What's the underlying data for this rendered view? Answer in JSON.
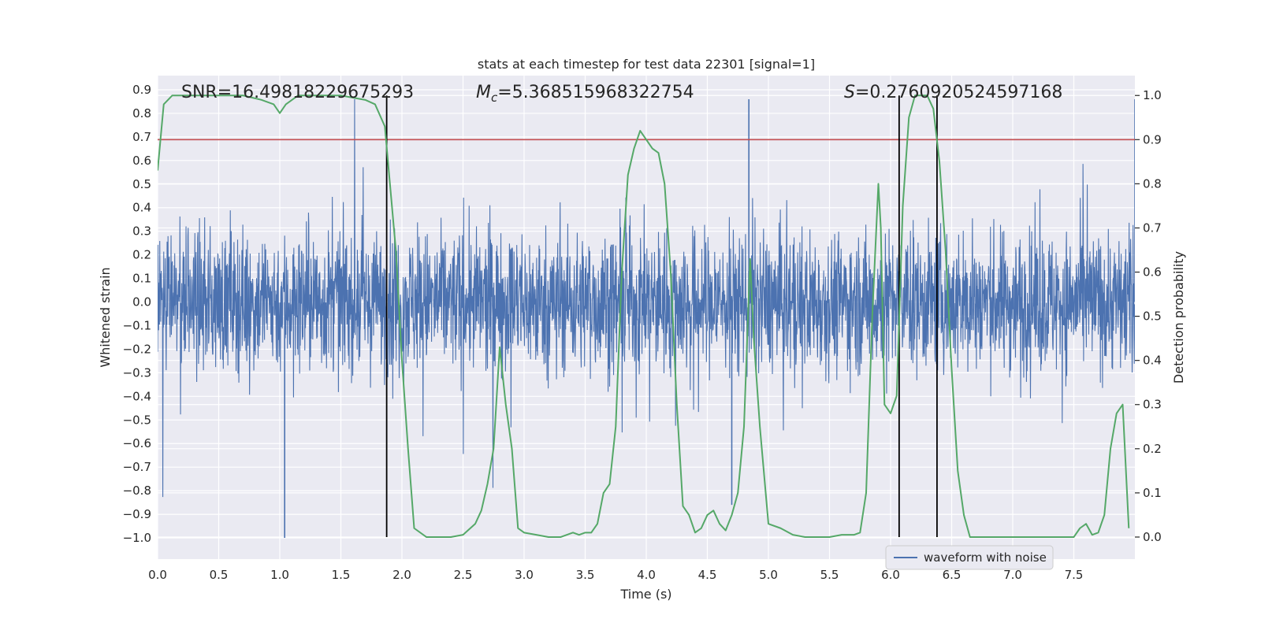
{
  "chart_data": {
    "type": "line",
    "title": "stats at each timestep for test data 22301 [signal=1]",
    "xlabel": "Time (s)",
    "ylabel_left": "Whitened strain",
    "ylabel_right": "Detection probability",
    "xlim": [
      0.0,
      8.0
    ],
    "ylim_left": [
      -1.09,
      0.96
    ],
    "ylim_right": [
      -0.05,
      1.045
    ],
    "x_ticks": [
      0.0,
      0.5,
      1.0,
      1.5,
      2.0,
      2.5,
      3.0,
      3.5,
      4.0,
      4.5,
      5.0,
      5.5,
      6.0,
      6.5,
      7.0,
      7.5
    ],
    "x_tick_labels": [
      "0.0",
      "0.5",
      "1.0",
      "1.5",
      "2.0",
      "2.5",
      "3.0",
      "3.5",
      "4.0",
      "4.5",
      "5.0",
      "5.5",
      "6.0",
      "6.5",
      "7.0",
      "7.5"
    ],
    "y_left_ticks": [
      0.9,
      0.8,
      0.7,
      0.6,
      0.5,
      0.4,
      0.3,
      0.2,
      0.1,
      0.0,
      -0.1,
      -0.2,
      -0.3,
      -0.4,
      -0.5,
      -0.6,
      -0.7,
      -0.8,
      -0.9,
      -1.0
    ],
    "y_left_tick_labels": [
      "0.9",
      "0.8",
      "0.7",
      "0.6",
      "0.5",
      "0.4",
      "0.3",
      "0.2",
      "0.1",
      "0.0",
      "−0.1",
      "−0.2",
      "−0.3",
      "−0.4",
      "−0.5",
      "−0.6",
      "−0.7",
      "−0.8",
      "−0.9",
      "−1.0"
    ],
    "y_right_ticks": [
      1.0,
      0.9,
      0.8,
      0.7,
      0.6,
      0.5,
      0.4,
      0.3,
      0.2,
      0.1,
      0.0
    ],
    "y_right_tick_labels": [
      "1.0",
      "0.9",
      "0.8",
      "0.7",
      "0.6",
      "0.5",
      "0.4",
      "0.3",
      "0.2",
      "0.1",
      "0.0"
    ],
    "annotations": {
      "snr": "SNR=16.49818229675293",
      "mc_symbol": "M",
      "mc_sub": "c",
      "mc_value": "=5.368515968322754",
      "s_symbol": "S",
      "s_value": "=0.2760920524597168"
    },
    "threshold": {
      "axis": "right",
      "value": 0.9,
      "color": "#c44e52"
    },
    "vertical_lines": [
      1.875,
      6.07,
      6.38
    ],
    "legend": {
      "label": "waveform with noise",
      "position": "lower-right",
      "color": "#4c72b0"
    },
    "series": [
      {
        "name": "waveform with noise",
        "axis": "left",
        "color": "#4c72b0",
        "description": "dense whitened strain noise, amplitude ~±0.3 typical, spikes to ±0.9",
        "notable_spikes": [
          {
            "x": 1.04,
            "y": -1.0
          },
          {
            "x": 4.84,
            "y": 0.86
          },
          {
            "x": 4.7,
            "y": -0.86
          },
          {
            "x": 8.0,
            "y": 0.86
          }
        ]
      },
      {
        "name": "detection probability",
        "axis": "right",
        "color": "#55a868",
        "x": [
          0.0,
          0.05,
          0.12,
          0.3,
          0.5,
          0.7,
          0.85,
          0.95,
          1.0,
          1.05,
          1.15,
          1.3,
          1.5,
          1.7,
          1.78,
          1.86,
          1.95,
          2.0,
          2.05,
          2.1,
          2.2,
          2.3,
          2.4,
          2.5,
          2.6,
          2.65,
          2.7,
          2.75,
          2.8,
          2.85,
          2.9,
          2.95,
          3.0,
          3.1,
          3.2,
          3.3,
          3.4,
          3.45,
          3.5,
          3.55,
          3.6,
          3.65,
          3.7,
          3.75,
          3.8,
          3.85,
          3.9,
          3.95,
          4.0,
          4.05,
          4.1,
          4.15,
          4.2,
          4.25,
          4.3,
          4.35,
          4.4,
          4.45,
          4.5,
          4.55,
          4.6,
          4.65,
          4.7,
          4.75,
          4.8,
          4.85,
          4.88,
          4.93,
          5.0,
          5.1,
          5.2,
          5.3,
          5.4,
          5.5,
          5.6,
          5.7,
          5.75,
          5.8,
          5.85,
          5.9,
          5.92,
          5.95,
          6.0,
          6.05,
          6.1,
          6.15,
          6.2,
          6.25,
          6.3,
          6.35,
          6.4,
          6.45,
          6.5,
          6.55,
          6.6,
          6.65,
          6.7,
          6.8,
          7.0,
          7.2,
          7.4,
          7.5,
          7.55,
          7.6,
          7.65,
          7.7,
          7.75,
          7.8,
          7.85,
          7.9,
          7.95
        ],
        "values": [
          0.83,
          0.98,
          1.0,
          1.0,
          1.0,
          1.0,
          0.99,
          0.98,
          0.96,
          0.98,
          1.0,
          1.0,
          1.0,
          0.99,
          0.98,
          0.93,
          0.65,
          0.4,
          0.2,
          0.02,
          0.0,
          0.0,
          0.0,
          0.005,
          0.03,
          0.06,
          0.12,
          0.2,
          0.43,
          0.3,
          0.2,
          0.02,
          0.01,
          0.005,
          0.0,
          0.0,
          0.01,
          0.005,
          0.01,
          0.01,
          0.03,
          0.1,
          0.12,
          0.25,
          0.6,
          0.82,
          0.88,
          0.92,
          0.9,
          0.88,
          0.87,
          0.8,
          0.6,
          0.3,
          0.07,
          0.05,
          0.01,
          0.02,
          0.05,
          0.06,
          0.03,
          0.015,
          0.05,
          0.1,
          0.25,
          0.63,
          0.45,
          0.25,
          0.03,
          0.02,
          0.005,
          0.0,
          0.0,
          0.0,
          0.005,
          0.005,
          0.01,
          0.1,
          0.5,
          0.8,
          0.7,
          0.3,
          0.28,
          0.32,
          0.75,
          0.95,
          1.0,
          1.0,
          1.0,
          0.97,
          0.85,
          0.65,
          0.38,
          0.15,
          0.05,
          0.0,
          0.0,
          0.0,
          0.0,
          0.0,
          0.0,
          0.0,
          0.02,
          0.03,
          0.005,
          0.01,
          0.05,
          0.2,
          0.28,
          0.3,
          0.02
        ]
      }
    ]
  }
}
